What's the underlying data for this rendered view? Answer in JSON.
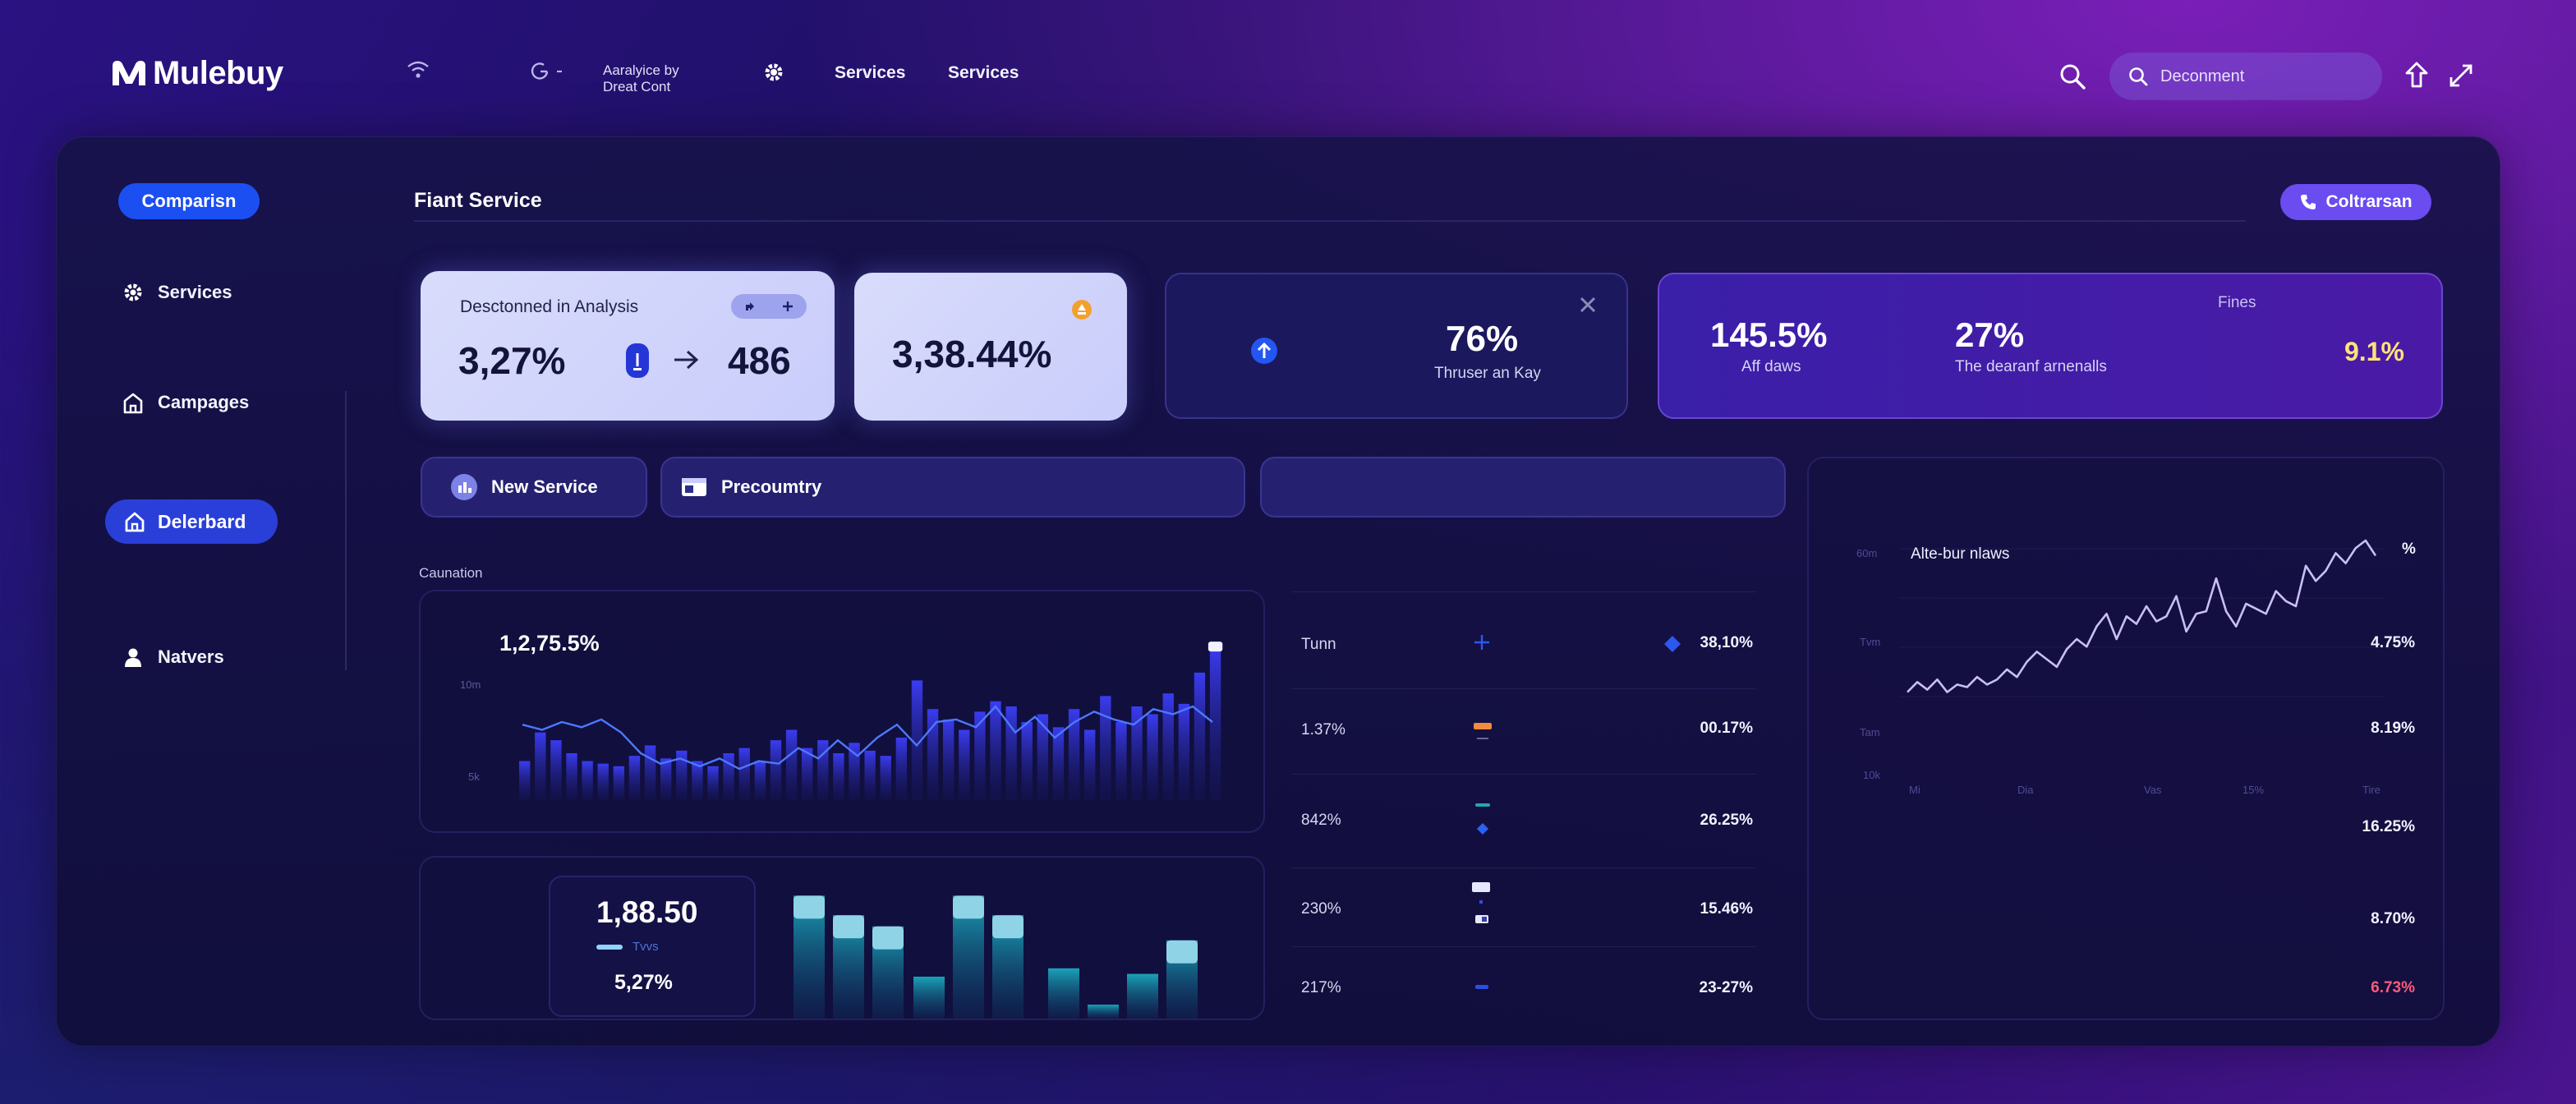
{
  "header": {
    "app_name": "Mulebuy",
    "status_text_line1": "Aaralyice by",
    "status_text_line2": "Dreat Cont",
    "nav": [
      "Services",
      "Services"
    ],
    "search_placeholder": "Deconment"
  },
  "sidebar": {
    "top_button": "Comparisn",
    "items": [
      {
        "label": "Services",
        "icon": "gear-icon"
      },
      {
        "label": "Campages",
        "icon": "building-icon"
      },
      {
        "label": "Delerbard",
        "icon": "home-icon",
        "active": true
      },
      {
        "label": "Natvers",
        "icon": "user-icon"
      }
    ]
  },
  "main": {
    "title": "Fiant Service",
    "action_button": "Coltrarsan",
    "stat_cards": {
      "card1": {
        "title": "Desctonned in Analysis",
        "left_value": "3,27%",
        "right_value": "486"
      },
      "card2": {
        "value": "3,38.44%"
      },
      "card3": {
        "value": "76%",
        "caption": "Thruser an Kay"
      },
      "card4": {
        "label_top": "Fines",
        "v1": "145.5%",
        "c1": "Aff daws",
        "v2": "27%",
        "c2": "The dearanf arnenalls",
        "v3": "9.1%"
      }
    },
    "tabs": [
      "New Service",
      "Precoumtry"
    ],
    "section_label": "Caunation"
  },
  "chart_data": [
    {
      "type": "bar",
      "title": "1,2,75.5%",
      "ylabel_ticks": [
        "10m",
        "5k"
      ],
      "values": [
        30,
        52,
        46,
        36,
        30,
        28,
        26,
        34,
        42,
        32,
        38,
        30,
        26,
        36,
        40,
        30,
        46,
        54,
        40,
        46,
        36,
        44,
        38,
        34,
        48,
        92,
        70,
        62,
        54,
        68,
        76,
        72,
        60,
        66,
        56,
        70,
        54,
        80,
        60,
        72,
        66,
        82,
        74,
        98,
        118
      ],
      "line_values": [
        58,
        54,
        60,
        56,
        62,
        52,
        36,
        28,
        32,
        26,
        32,
        24,
        30,
        28,
        40,
        32,
        46,
        34,
        48,
        58,
        42,
        60,
        62,
        56,
        72,
        52,
        64,
        48,
        60,
        68,
        62,
        58,
        70,
        66,
        72,
        60
      ]
    },
    {
      "type": "bar",
      "values": [
        88,
        74,
        66,
        30,
        88,
        74,
        36,
        10,
        32,
        56
      ],
      "legend": "Tvvs"
    },
    {
      "type": "line",
      "title": "Alte-bur nlaws",
      "y_ticks": [
        "60m",
        "Tvm",
        "Tam",
        "10k"
      ],
      "x_ticks": [
        "Mi",
        "Dia",
        "Vas",
        "15%",
        "Tire"
      ],
      "values": [
        10,
        18,
        12,
        20,
        10,
        16,
        14,
        22,
        16,
        20,
        28,
        22,
        34,
        42,
        36,
        30,
        44,
        52,
        46,
        62,
        72,
        52,
        70,
        64,
        78,
        66,
        70,
        86,
        58,
        72,
        74,
        100,
        74,
        62,
        80,
        76,
        72,
        90,
        82,
        78,
        110,
        98,
        106,
        120,
        112,
        124,
        130,
        118
      ]
    }
  ],
  "summary_box": {
    "value": "1,88.50",
    "legend": "Tvvs",
    "sub_value": "5,27%"
  },
  "table": {
    "rows": [
      {
        "left": "Tunn",
        "right": "38,10%",
        "right_pct": "4.75%"
      },
      {
        "left": "1.37%",
        "right": "00.17%",
        "right_pct": "8.19%"
      },
      {
        "left": "842%",
        "right": "26.25%",
        "right_pct": "16.25%"
      },
      {
        "left": "230%",
        "right": "15.46%",
        "right_pct": "8.70%"
      },
      {
        "left": "217%",
        "right": "23-27%",
        "right_pct": "6.73%"
      }
    ],
    "line_pct_top": "%"
  },
  "colors": {
    "accent_blue": "#1b4ff2",
    "accent_violet": "#6a4cf0",
    "negative": "#ff5a7a",
    "highlight": "#ffe27a"
  }
}
